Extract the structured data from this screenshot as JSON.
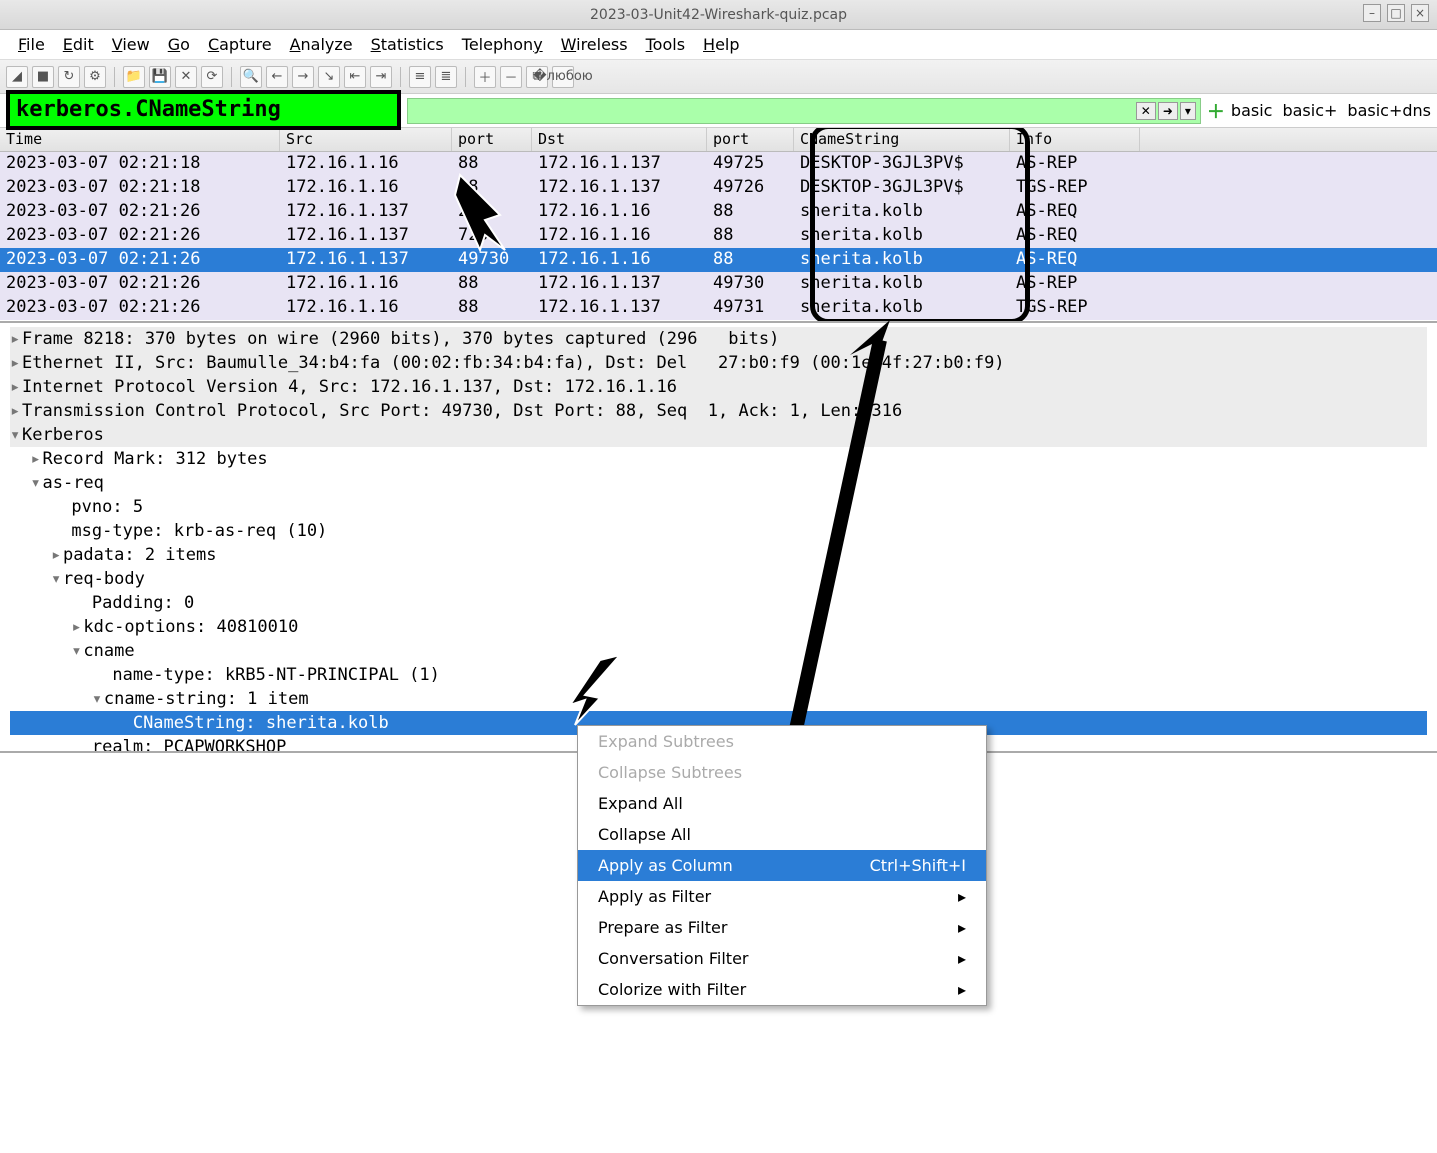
{
  "window": {
    "title": "2023-03-Unit42-Wireshark-quiz.pcap"
  },
  "menu": {
    "file": "File",
    "edit": "Edit",
    "view": "View",
    "go": "Go",
    "capture": "Capture",
    "analyze": "Analyze",
    "statistics": "Statistics",
    "telephony": "Telephony",
    "wireless": "Wireless",
    "tools": "Tools",
    "help": "Help"
  },
  "filter": {
    "text": "kerberos.CNameString"
  },
  "quick": {
    "b1": "basic",
    "b2": "basic+",
    "b3": "basic+dns"
  },
  "columns": {
    "time": "Time",
    "src": "Src",
    "port1": "port",
    "dst": "Dst",
    "port2": "port",
    "cname": "CNameString",
    "info": "Info"
  },
  "rows": [
    {
      "time": "2023-03-07 02:21:18",
      "src": "172.16.1.16",
      "p1": "88",
      "dst": "172.16.1.137",
      "p2": "49725",
      "cn": "DESKTOP-3GJL3PV$",
      "info": "AS-REP"
    },
    {
      "time": "2023-03-07 02:21:18",
      "src": "172.16.1.16",
      "p1": "88",
      "dst": "172.16.1.137",
      "p2": "49726",
      "cn": "DESKTOP-3GJL3PV$",
      "info": "TGS-REP"
    },
    {
      "time": "2023-03-07 02:21:26",
      "src": "172.16.1.137",
      "p1": "  28",
      "dst": "172.16.1.16",
      "p2": "88",
      "cn": "sherita.kolb",
      "info": "AS-REQ"
    },
    {
      "time": "2023-03-07 02:21:26",
      "src": "172.16.1.137",
      "p1": "  729",
      "dst": "172.16.1.16",
      "p2": "88",
      "cn": "sherita.kolb",
      "info": "AS-REQ"
    },
    {
      "time": "2023-03-07 02:21:26",
      "src": "172.16.1.137",
      "p1": "49730",
      "dst": "172.16.1.16",
      "p2": "88",
      "cn": "sherita.kolb",
      "info": "AS-REQ",
      "sel": true
    },
    {
      "time": "2023-03-07 02:21:26",
      "src": "172.16.1.16",
      "p1": "88",
      "dst": "172.16.1.137",
      "p2": "49730",
      "cn": "sherita.kolb",
      "info": "AS-REP"
    },
    {
      "time": "2023-03-07 02:21:26",
      "src": "172.16.1.16",
      "p1": "88",
      "dst": "172.16.1.137",
      "p2": "49731",
      "cn": "sherita.kolb",
      "info": "TGS-REP"
    }
  ],
  "details": {
    "l0": "Frame 8218: 370 bytes on wire (2960 bits), 370 bytes captured (296   bits)",
    "l1": "Ethernet II, Src: Baumulle_34:b4:fa (00:02:fb:34:b4:fa), Dst: Del   27:b0:f9 (00:1e:4f:27:b0:f9)",
    "l2": "Internet Protocol Version 4, Src: 172.16.1.137, Dst: 172.16.1.16",
    "l3": "Transmission Control Protocol, Src Port: 49730, Dst Port: 88, Seq  1, Ack: 1, Len: 316",
    "l4": "Kerberos",
    "l5": "Record Mark: 312 bytes",
    "l6": "as-req",
    "l7": "pvno: 5",
    "l8": "msg-type: krb-as-req (10)",
    "l9": "padata: 2 items",
    "l10": "req-body",
    "l11": "Padding: 0",
    "l12": "kdc-options: 40810010",
    "l13": "cname",
    "l14": "name-type: kRB5-NT-PRINCIPAL (1)",
    "l15": "cname-string: 1 item",
    "l16": "CNameString: sherita.kolb",
    "l17": "realm: PCAPWORKSHOP"
  },
  "ctx": {
    "expand_sub": "Expand Subtrees",
    "collapse_sub": "Collapse Subtrees",
    "expand_all": "Expand All",
    "collapse_all": "Collapse All",
    "apply_col": "Apply as Column",
    "apply_col_sc": "Ctrl+Shift+I",
    "apply_filter": "Apply as Filter",
    "prepare_filter": "Prepare as Filter",
    "conv_filter": "Conversation Filter",
    "colorize": "Colorize with Filter"
  },
  "colors": {
    "sel_bg": "#2b7dd6",
    "row_bg": "#e8e4f4",
    "filter_bg": "#00ff00",
    "filter_valid": "#aaffaa"
  }
}
